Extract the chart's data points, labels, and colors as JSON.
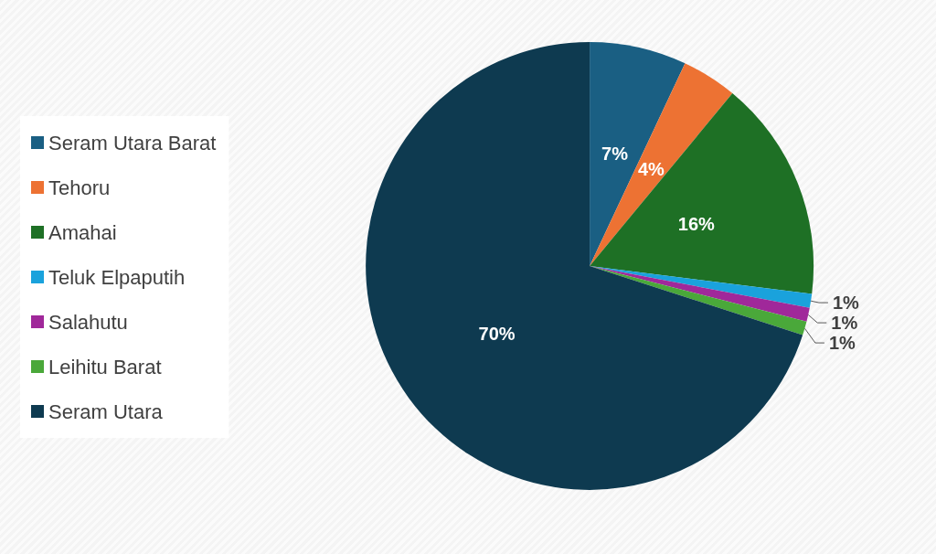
{
  "chart_data": {
    "type": "pie",
    "categories": [
      "Seram Utara Barat",
      "Tehoru",
      "Amahai",
      "Teluk Elpaputih",
      "Salahutu",
      "Leihitu Barat",
      "Seram Utara"
    ],
    "values": [
      7,
      4,
      16,
      1,
      1,
      1,
      70
    ],
    "value_labels": [
      "7%",
      "4%",
      "16%",
      "1%",
      "1%",
      "1%",
      "70%"
    ],
    "colors": [
      "#1a5f83",
      "#ed7233",
      "#1e7025",
      "#1aa2dc",
      "#a0289a",
      "#4aa83a",
      "#0e3a50"
    ],
    "legend": "left"
  }
}
